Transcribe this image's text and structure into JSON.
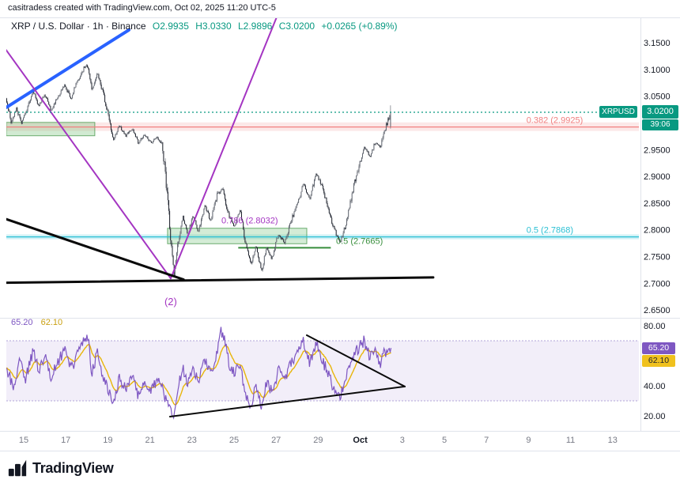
{
  "page": {
    "attribution": "casitradess created with TradingView.com, Oct 02, 2025 11:20 UTC-5"
  },
  "legend": {
    "title": "XRP / U.S. Dollar · 1h · Binance",
    "o": "O2.9935",
    "h": "H3.0330",
    "l": "L2.9896",
    "c": "C3.0200",
    "change": "+0.0265 (+0.89%)"
  },
  "price_scale": {
    "symbol_tag": "XRPUSD",
    "price": "3.0200",
    "countdown": "39:06"
  },
  "indicator_scale": {
    "main": "65.20",
    "signal": "62.10"
  },
  "indicator_legend": {
    "main": "65.20",
    "signal": "62.10"
  },
  "footer": {
    "brand": "TradingView"
  },
  "chart_data": {
    "type": "candlestick",
    "title": "XRP / U.S. Dollar · 1h · Binance",
    "last": {
      "open": 2.9935,
      "high": 3.033,
      "low": 2.9896,
      "close": 3.02
    },
    "price_axis": {
      "ticks": [
        3.15,
        3.1,
        3.05,
        2.95,
        2.9,
        2.85,
        2.8,
        2.75,
        2.7,
        2.65
      ],
      "min": 2.635,
      "max": 3.197
    },
    "time_axis": {
      "labels": [
        "15",
        "17",
        "19",
        "21",
        "23",
        "25",
        "27",
        "29",
        "Oct",
        "3",
        "5",
        "7",
        "9",
        "11",
        "13"
      ],
      "label_days": [
        0,
        2,
        4,
        6,
        8,
        10,
        12,
        14,
        16,
        18,
        20,
        22,
        24,
        26,
        28
      ],
      "day_start": -0.83,
      "day_end_data": 17.45
    },
    "price_path": [
      [
        -0.83,
        3.046
      ],
      [
        -0.6,
        3.001
      ],
      [
        -0.35,
        3.028
      ],
      [
        -0.1,
        2.999
      ],
      [
        0.15,
        3.025
      ],
      [
        0.45,
        3.06
      ],
      [
        0.7,
        3.032
      ],
      [
        1.0,
        3.055
      ],
      [
        1.3,
        3.022
      ],
      [
        1.6,
        3.048
      ],
      [
        1.95,
        3.07
      ],
      [
        2.25,
        3.046
      ],
      [
        2.55,
        3.078
      ],
      [
        2.85,
        3.102
      ],
      [
        3.05,
        3.108
      ],
      [
        3.25,
        3.062
      ],
      [
        3.5,
        3.092
      ],
      [
        3.75,
        3.058
      ],
      [
        4.0,
        3.022
      ],
      [
        4.25,
        2.968
      ],
      [
        4.55,
        2.996
      ],
      [
        4.85,
        2.976
      ],
      [
        5.15,
        2.99
      ],
      [
        5.45,
        2.963
      ],
      [
        5.75,
        2.978
      ],
      [
        6.05,
        2.963
      ],
      [
        6.35,
        2.973
      ],
      [
        6.6,
        2.956
      ],
      [
        6.8,
        2.875
      ],
      [
        7.0,
        2.772
      ],
      [
        7.15,
        2.716
      ],
      [
        7.35,
        2.776
      ],
      [
        7.55,
        2.826
      ],
      [
        7.8,
        2.792
      ],
      [
        8.05,
        2.826
      ],
      [
        8.3,
        2.796
      ],
      [
        8.6,
        2.846
      ],
      [
        8.9,
        2.816
      ],
      [
        9.2,
        2.866
      ],
      [
        9.45,
        2.876
      ],
      [
        9.7,
        2.832
      ],
      [
        10.0,
        2.806
      ],
      [
        10.3,
        2.836
      ],
      [
        10.55,
        2.772
      ],
      [
        10.8,
        2.736
      ],
      [
        11.05,
        2.772
      ],
      [
        11.3,
        2.722
      ],
      [
        11.55,
        2.766
      ],
      [
        11.8,
        2.746
      ],
      [
        12.1,
        2.792
      ],
      [
        12.4,
        2.776
      ],
      [
        12.7,
        2.816
      ],
      [
        13.0,
        2.846
      ],
      [
        13.3,
        2.886
      ],
      [
        13.6,
        2.858
      ],
      [
        13.9,
        2.906
      ],
      [
        14.15,
        2.886
      ],
      [
        14.45,
        2.846
      ],
      [
        14.75,
        2.801
      ],
      [
        15.05,
        2.776
      ],
      [
        15.35,
        2.816
      ],
      [
        15.65,
        2.876
      ],
      [
        15.95,
        2.921
      ],
      [
        16.2,
        2.956
      ],
      [
        16.45,
        2.936
      ],
      [
        16.7,
        2.963
      ],
      [
        16.95,
        2.953
      ],
      [
        17.15,
        2.986
      ],
      [
        17.45,
        3.02
      ]
    ],
    "levels": [
      {
        "name": "current-price-line",
        "price": 3.02,
        "color": "#089981",
        "style": "dotted",
        "span": "full"
      },
      {
        "name": "fib-0382-line",
        "price": 2.9925,
        "color": "#f17f7f",
        "style": "solid",
        "span": "full",
        "band": [
          3.001,
          2.985
        ],
        "band_color": "rgba(241,127,127,0.18)",
        "label": "0.382 (2.9925)",
        "label_day": 23.9
      },
      {
        "name": "fib-05-line",
        "price": 2.7868,
        "color": "#2bc0d4",
        "style": "solid",
        "span": "full",
        "band": [
          2.7915,
          2.7825
        ],
        "band_color": "rgba(43,192,212,0.22)",
        "label": "0.5 (2.7868)",
        "label_day": 23.9
      },
      {
        "name": "level-05-low-line",
        "price": 2.7665,
        "color": "#388e3c",
        "style": "solid",
        "width": 2,
        "span": [
          10.2,
          14.6
        ],
        "label": "0.5 (2.7665)",
        "label_day": 14.85
      }
    ],
    "zones": [
      {
        "name": "supply-zone",
        "days": [
          -0.83,
          3.38
        ],
        "prices": [
          3.001,
          2.976
        ],
        "fill": "rgba(102,187,106,0.30)",
        "border": "rgba(56,142,60,0.7)"
      },
      {
        "name": "fib-0786-zone",
        "days": [
          6.84,
          13.46
        ],
        "prices": [
          2.803,
          2.774
        ],
        "fill": "rgba(102,187,106,0.28)",
        "border": "rgba(56,142,60,0.7)",
        "label": "0.786 (2.8032)",
        "label_color": "#a435c2",
        "label_day": 9.4
      }
    ],
    "trendlines": [
      {
        "name": "blue-trendline",
        "color": "#2962ff",
        "width": 4,
        "points": [
          [
            -0.83,
            3.029
          ],
          [
            5.0,
            3.174
          ]
        ]
      },
      {
        "name": "purple-trendline-down",
        "color": "#a435c2",
        "width": 2,
        "points": [
          [
            -0.9,
            3.14
          ],
          [
            6.99,
            2.709
          ]
        ]
      },
      {
        "name": "purple-trendline-up",
        "color": "#a435c2",
        "width": 2,
        "points": [
          [
            6.99,
            2.709
          ],
          [
            12.15,
            3.21
          ]
        ]
      },
      {
        "name": "black-trendline-upper",
        "color": "#0a0a0a",
        "width": 3,
        "points": [
          [
            -0.83,
            2.82
          ],
          [
            7.6,
            2.707
          ]
        ]
      },
      {
        "name": "black-trendline-lower",
        "color": "#0a0a0a",
        "width": 3,
        "points": [
          [
            -0.83,
            2.701
          ],
          [
            19.47,
            2.711
          ]
        ]
      }
    ],
    "annotations": [
      {
        "name": "wave-2-label",
        "text": "(2)",
        "day": 6.99,
        "price": 2.659,
        "color": "#a435c2"
      }
    ],
    "indicator": {
      "name": "RSI",
      "axis_ticks": [
        80,
        40,
        20
      ],
      "band": [
        70,
        30
      ],
      "colors": {
        "main": "#7e57c2",
        "signal": "#e8b50a",
        "band_fill": "rgba(126,87,194,0.10)",
        "band_line": "#b3a6d9"
      },
      "last": {
        "main": 65.2,
        "signal": 62.1
      },
      "path": [
        [
          -0.83,
          52
        ],
        [
          -0.5,
          40
        ],
        [
          -0.2,
          55
        ],
        [
          0.1,
          45
        ],
        [
          0.45,
          63
        ],
        [
          0.7,
          50
        ],
        [
          1.0,
          60
        ],
        [
          1.3,
          44
        ],
        [
          1.6,
          56
        ],
        [
          1.95,
          64
        ],
        [
          2.25,
          50
        ],
        [
          2.55,
          62
        ],
        [
          2.85,
          70
        ],
        [
          3.05,
          72
        ],
        [
          3.25,
          48
        ],
        [
          3.5,
          62
        ],
        [
          3.75,
          45
        ],
        [
          4.0,
          38
        ],
        [
          4.25,
          26
        ],
        [
          4.55,
          45
        ],
        [
          4.85,
          38
        ],
        [
          5.15,
          48
        ],
        [
          5.45,
          33
        ],
        [
          5.75,
          44
        ],
        [
          6.05,
          35
        ],
        [
          6.35,
          44
        ],
        [
          6.6,
          38
        ],
        [
          6.8,
          28
        ],
        [
          7.1,
          18
        ],
        [
          7.35,
          38
        ],
        [
          7.55,
          52
        ],
        [
          7.8,
          42
        ],
        [
          8.05,
          52
        ],
        [
          8.3,
          44
        ],
        [
          8.6,
          56
        ],
        [
          8.9,
          48
        ],
        [
          9.2,
          62
        ],
        [
          9.35,
          78
        ],
        [
          9.55,
          70
        ],
        [
          9.8,
          52
        ],
        [
          10.05,
          48
        ],
        [
          10.3,
          55
        ],
        [
          10.55,
          32
        ],
        [
          10.8,
          25
        ],
        [
          11.05,
          42
        ],
        [
          11.3,
          24
        ],
        [
          11.55,
          42
        ],
        [
          11.8,
          36
        ],
        [
          12.1,
          50
        ],
        [
          12.4,
          44
        ],
        [
          12.7,
          55
        ],
        [
          13.0,
          60
        ],
        [
          13.3,
          70
        ],
        [
          13.6,
          56
        ],
        [
          13.9,
          68
        ],
        [
          14.15,
          60
        ],
        [
          14.45,
          48
        ],
        [
          14.75,
          38
        ],
        [
          15.05,
          34
        ],
        [
          15.35,
          48
        ],
        [
          15.65,
          60
        ],
        [
          15.95,
          66
        ],
        [
          16.2,
          70
        ],
        [
          16.45,
          58
        ],
        [
          16.7,
          64
        ],
        [
          16.95,
          55
        ],
        [
          17.15,
          62
        ],
        [
          17.45,
          65.2
        ]
      ],
      "trendlines": [
        {
          "name": "rsi-wedge-upper",
          "color": "#0a0a0a",
          "width": 2,
          "points": [
            [
              13.46,
              73.7
            ],
            [
              18.12,
              39.5
            ]
          ]
        },
        {
          "name": "rsi-wedge-lower",
          "color": "#0a0a0a",
          "width": 2,
          "points": [
            [
              6.95,
              19.5
            ],
            [
              18.12,
              39.5
            ]
          ]
        }
      ]
    }
  }
}
